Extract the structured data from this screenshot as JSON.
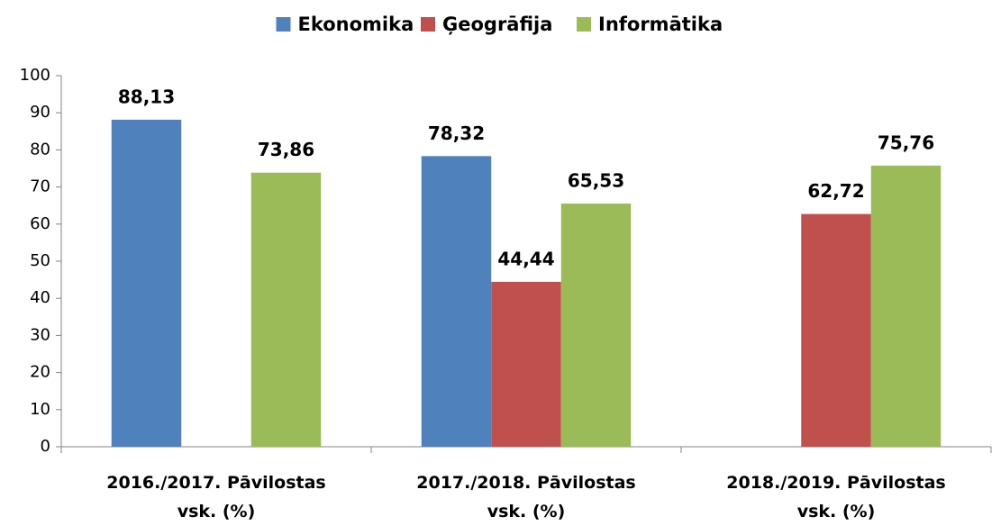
{
  "chart_data": {
    "type": "bar",
    "categories": [
      "2016./2017. Pāvilostas vsk. (%)",
      "2017./2018. Pāvilostas vsk. (%)",
      "2018./2019. Pāvilostas vsk. (%)"
    ],
    "series": [
      {
        "name": "Ekonomika",
        "color": "#4f81bd",
        "values": [
          88.13,
          78.32,
          null
        ],
        "value_labels": [
          "88,13",
          "78,32",
          null
        ]
      },
      {
        "name": "Ģeogrāfija",
        "color": "#c0504d",
        "values": [
          null,
          44.44,
          62.72
        ],
        "value_labels": [
          null,
          "44,44",
          "62,72"
        ]
      },
      {
        "name": "Informātika",
        "color": "#9bbb59",
        "values": [
          73.86,
          65.53,
          75.76
        ],
        "value_labels": [
          "73,86",
          "65,53",
          "75,76"
        ]
      }
    ],
    "ylim": [
      0,
      100
    ],
    "yticks": [
      0,
      10,
      20,
      30,
      40,
      50,
      60,
      70,
      80,
      90,
      100
    ],
    "grid": false,
    "legend": "top"
  }
}
